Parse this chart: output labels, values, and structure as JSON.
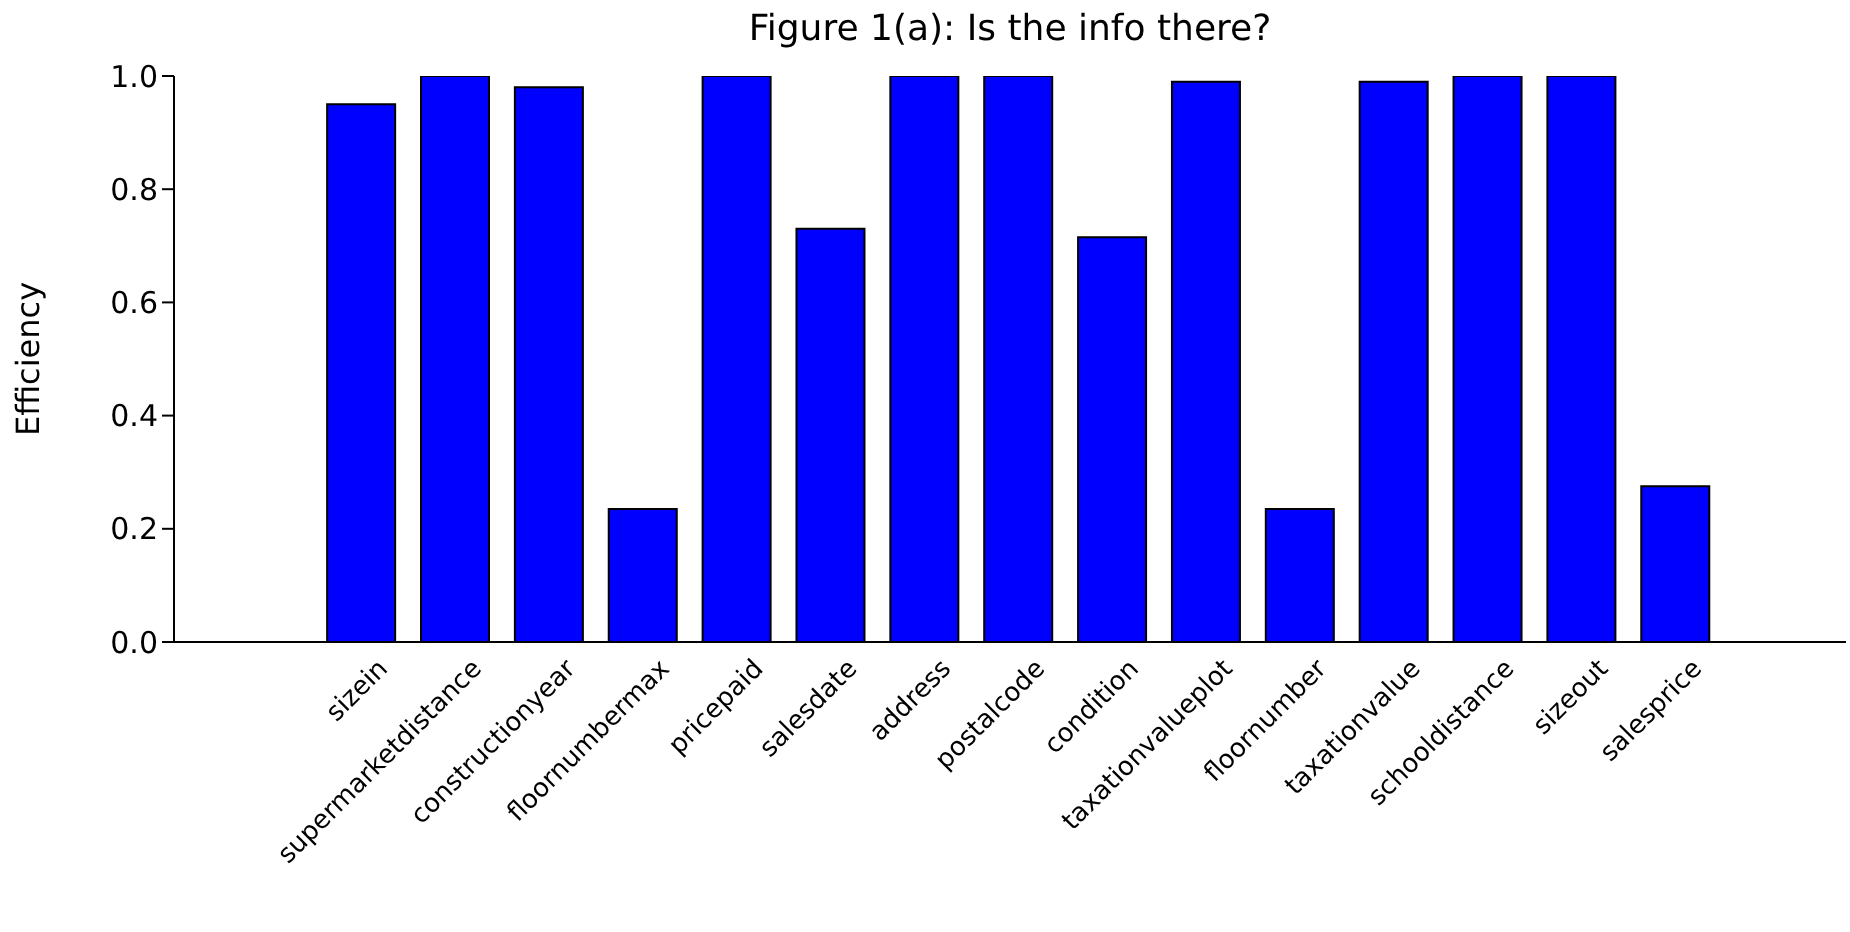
{
  "chart_data": {
    "type": "bar",
    "title": "Figure 1(a): Is the info there?",
    "ylabel": "Efficiency",
    "categories": [
      "sizein",
      "supermarketdistance",
      "constructionyear",
      "floornumbermax",
      "pricepaid",
      "salesdate",
      "address",
      "postalcode",
      "condition",
      "taxationvalueplot",
      "floornumber",
      "taxationvalue",
      "schooldistance",
      "sizeout",
      "salesprice"
    ],
    "values": [
      0.95,
      1.0,
      0.98,
      0.235,
      1.0,
      0.73,
      1.0,
      1.0,
      0.715,
      0.99,
      0.235,
      0.99,
      1.0,
      1.0,
      0.275
    ],
    "color": "#0000ff",
    "ylim": [
      0,
      1
    ],
    "yticks": [
      {
        "value": 0,
        "label": "0.0"
      },
      {
        "value": 0.2,
        "label": "0.2"
      },
      {
        "value": 0.4,
        "label": "0.4"
      },
      {
        "value": 0.6,
        "label": "0.6"
      },
      {
        "value": 0.8,
        "label": "0.8"
      },
      {
        "value": 1,
        "label": "1.0"
      }
    ],
    "grid": false
  }
}
